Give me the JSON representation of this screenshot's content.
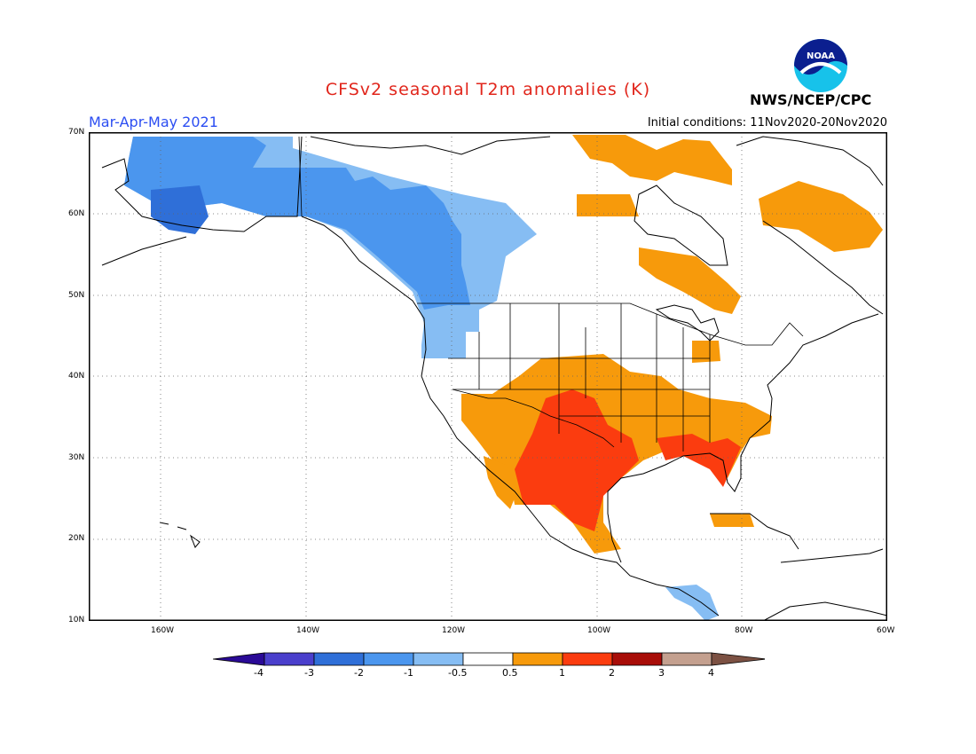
{
  "header": {
    "title": "CFSv2 seasonal T2m anomalies (K)",
    "period": "Mar-Apr-May 2021",
    "initial_conditions": "Initial conditions: 11Nov2020-20Nov2020",
    "agency": "NWS/NCEP/CPC",
    "logo_text": "NOAA"
  },
  "map": {
    "lat_labels": [
      "70N",
      "60N",
      "50N",
      "40N",
      "30N",
      "20N",
      "10N"
    ],
    "lon_labels": [
      "160W",
      "140W",
      "120W",
      "100W",
      "80W",
      "60W"
    ]
  },
  "colorbar": {
    "labels": [
      "-4",
      "-3",
      "-2",
      "-1",
      "-0.5",
      "0.5",
      "1",
      "2",
      "3",
      "4"
    ],
    "colors": [
      "#2a0a96",
      "#4a3fcc",
      "#2f6fd8",
      "#4b96ee",
      "#86bdf3",
      "#ffffff",
      "#f79a0b",
      "#fb3c0f",
      "#a80d08",
      "#c4a08f",
      "#7c5143"
    ]
  }
}
